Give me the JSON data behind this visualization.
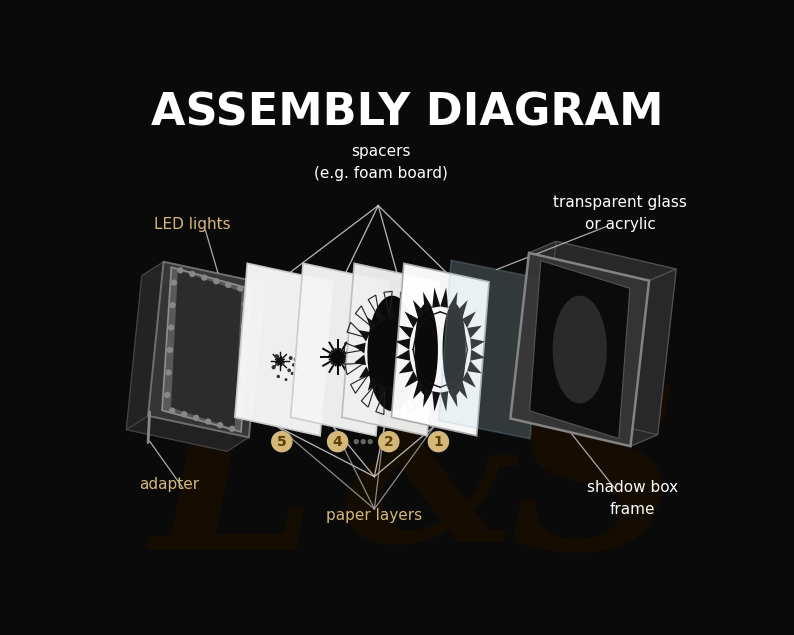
{
  "title": "ASSEMBLY DIAGRAM",
  "title_fontsize": 32,
  "title_color": "#ffffff",
  "title_weight": "bold",
  "bg_color": "#0a0a0a",
  "label_color": "#d4b87a",
  "label_fontsize": 11,
  "white_label_color": "#ffffff",
  "labels": {
    "led_lights": "LED lights",
    "adapter": "adapter",
    "spacers": "spacers\n(e.g. foam board)",
    "transparent": "transparent glass\nor acrylic",
    "paper_layers": "paper layers",
    "shadow_box": "shadow box\nframe"
  },
  "layer_number_bg": "#d4b87a",
  "layer_number_text": "#5a3d00",
  "line_color": "#cccccc"
}
